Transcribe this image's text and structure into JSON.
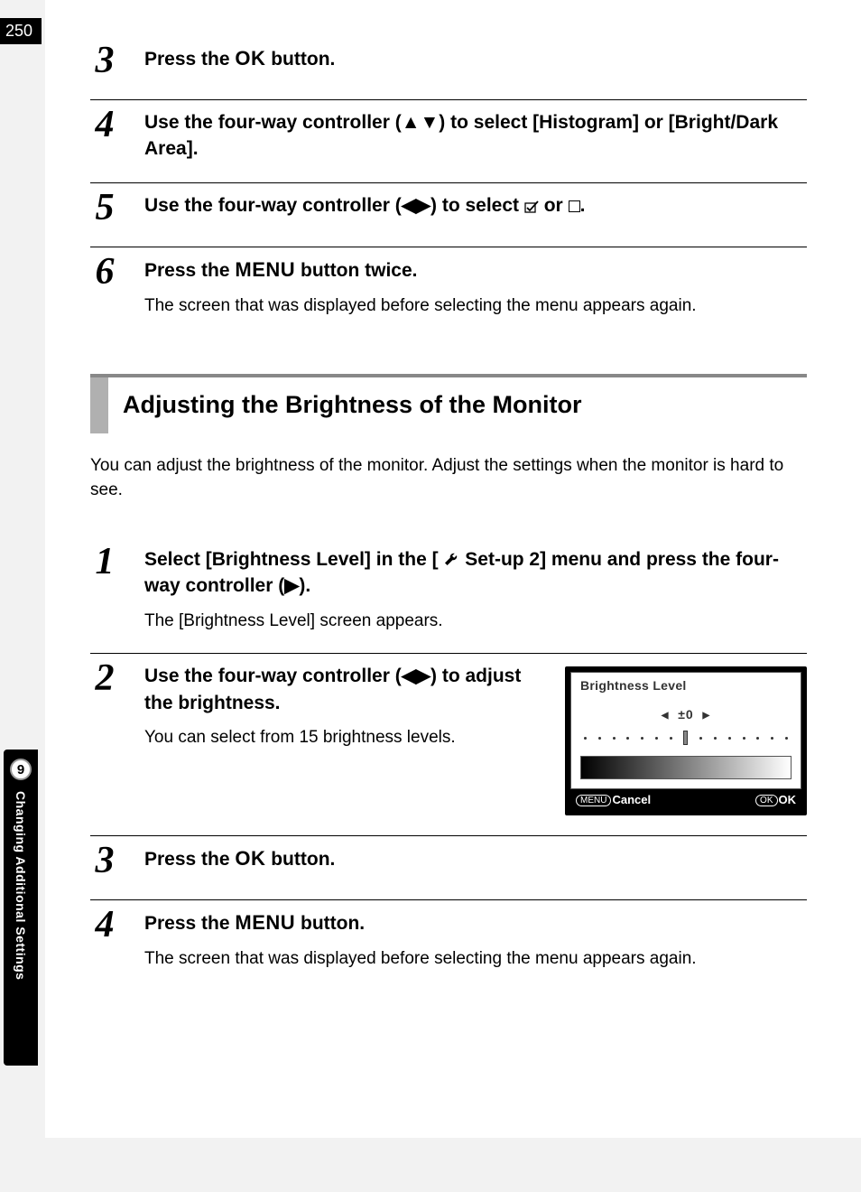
{
  "page_number": "250",
  "chapter_number": "9",
  "side_label": "Changing Additional Settings",
  "steps_a": [
    {
      "num": "3",
      "head_parts": [
        "Press the ",
        "OK",
        " button."
      ]
    },
    {
      "num": "4",
      "head": "Use the four-way controller (▲▼) to select [Histogram] or [Bright/Dark Area]."
    },
    {
      "num": "5",
      "head_prefix": "Use the four-way controller (◀▶) to select ",
      "head_middle": " or ",
      "head_suffix": "."
    },
    {
      "num": "6",
      "head_parts": [
        "Press the ",
        "MENU",
        " button twice."
      ],
      "desc": "The screen that was displayed before selecting the menu appears again."
    }
  ],
  "section_title": "Adjusting the Brightness of the Monitor",
  "intro": "You can adjust the brightness of the monitor. Adjust the settings when the monitor is hard to see.",
  "steps_b": [
    {
      "num": "1",
      "head_parts": [
        "Select [Brightness Level] in the [",
        "WRENCH",
        " Set-up 2] menu and press the four-way controller (▶)."
      ],
      "desc": "The [Brightness Level] screen appears."
    },
    {
      "num": "2",
      "head": "Use the four-way controller (◀▶) to adjust the brightness.",
      "desc": "You can select from 15 brightness levels."
    },
    {
      "num": "3",
      "head_parts": [
        "Press the ",
        "OK",
        " button."
      ]
    },
    {
      "num": "4",
      "head_parts": [
        "Press the ",
        "MENU",
        " button."
      ],
      "desc": "The screen that was displayed before selecting the menu appears again."
    }
  ],
  "lcd": {
    "title": "Brightness Level",
    "value": "±0",
    "slider_positions": 15,
    "slider_index": 7,
    "footer_left_btn": "MENU",
    "footer_left_text": "Cancel",
    "footer_right_btn": "OK",
    "footer_right_text": "OK"
  }
}
